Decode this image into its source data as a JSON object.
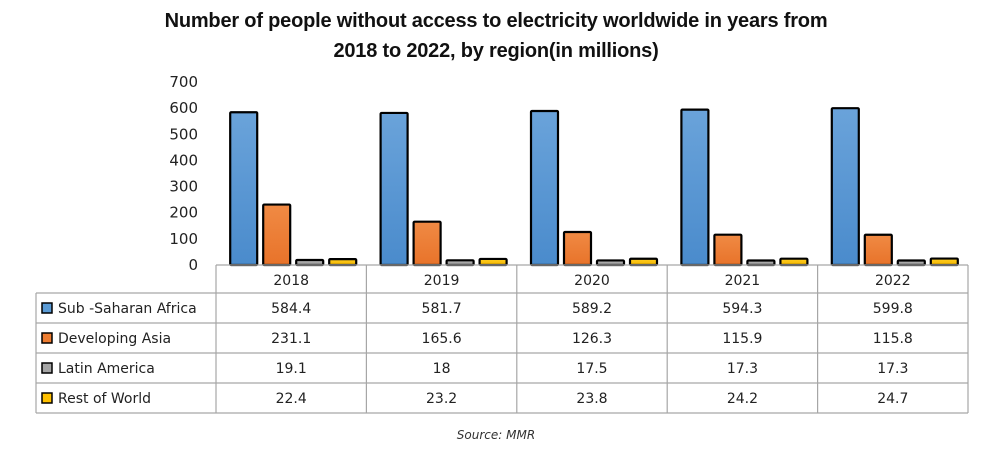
{
  "chart_data": {
    "type": "bar",
    "title_line1": "Number of people without access to electricity worldwide in years from",
    "title_line2": "2018 to 2022, by region(in millions)",
    "xlabel": "",
    "ylabel": "",
    "ylim": [
      0,
      700
    ],
    "yticks": [
      0,
      100,
      200,
      300,
      400,
      500,
      600,
      700
    ],
    "grid": false,
    "legend_placement": "data-table-left",
    "categories": [
      "2018",
      "2019",
      "2020",
      "2021",
      "2022"
    ],
    "series": [
      {
        "name": "Sub -Saharan Africa",
        "color": "#5b9bd5",
        "values": [
          584.4,
          581.7,
          589.2,
          594.3,
          599.8
        ],
        "display": [
          "584.4",
          "581.7",
          "589.2",
          "594.3",
          "599.8"
        ]
      },
      {
        "name": "Developing Asia",
        "color": "#ed7d31",
        "values": [
          231.1,
          165.6,
          126.3,
          115.9,
          115.8
        ],
        "display": [
          "231.1",
          "165.6",
          "126.3",
          "115.9",
          "115.8"
        ]
      },
      {
        "name": "Latin America",
        "color": "#a5a5a5",
        "values": [
          19.1,
          18,
          17.5,
          17.3,
          17.3
        ],
        "display": [
          "19.1",
          "18",
          "17.5",
          "17.3",
          "17.3"
        ]
      },
      {
        "name": "Rest of World",
        "color": "#ffc000",
        "values": [
          22.4,
          23.2,
          23.8,
          24.2,
          24.7
        ],
        "display": [
          "22.4",
          "23.2",
          "23.8",
          "24.2",
          "24.7"
        ]
      }
    ],
    "source": "Source: MMR"
  }
}
